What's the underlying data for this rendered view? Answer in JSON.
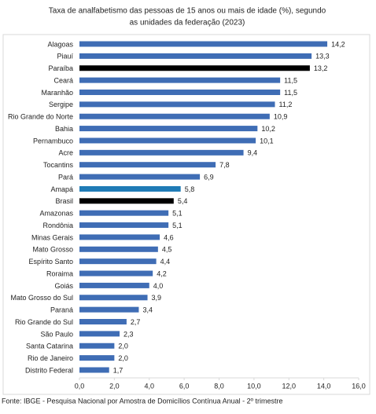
{
  "chart_data": {
    "type": "bar",
    "orientation": "horizontal",
    "title": [
      "Taxa de analfabetismo das pessoas de 15 anos ou mais de idade (%), segundo",
      "as unidades da federação (2023)"
    ],
    "categories": [
      "Alagoas",
      "Piauí",
      "Paraíba",
      "Ceará",
      "Maranhão",
      "Sergipe",
      "Rio Grande do Norte",
      "Bahia",
      "Pernambuco",
      "Acre",
      "Tocantins",
      "Pará",
      "Amapá",
      "Brasil",
      "Amazonas",
      "Rondônia",
      "Minas Gerais",
      "Mato Grosso",
      "Espírito Santo",
      "Roraima",
      "Goiás",
      "Mato Grosso do Sul",
      "Paraná",
      "Rio Grande do Sul",
      "São Paulo",
      "Santa Catarina",
      "Rio de Janeiro",
      "Distrito Federal"
    ],
    "values": [
      14.2,
      13.3,
      13.2,
      11.5,
      11.5,
      11.2,
      10.9,
      10.2,
      10.1,
      9.4,
      7.8,
      6.9,
      5.8,
      5.4,
      5.1,
      5.1,
      4.6,
      4.5,
      4.4,
      4.2,
      4.0,
      3.9,
      3.4,
      2.7,
      2.3,
      2.0,
      2.0,
      1.7
    ],
    "value_labels": [
      "14,2",
      "13,3",
      "13,2",
      "11,5",
      "11,5",
      "11,2",
      "10,9",
      "10,2",
      "10,1",
      "9,4",
      "7,8",
      "6,9",
      "5,8",
      "5,4",
      "5,1",
      "5,1",
      "4,6",
      "4,5",
      "4,4",
      "4,2",
      "4,0",
      "3,9",
      "3,4",
      "2,7",
      "2,3",
      "2,0",
      "2,0",
      "1,7"
    ],
    "colors": [
      "#3f6db5",
      "#3f6db5",
      "#000000",
      "#3f6db5",
      "#3f6db5",
      "#3f6db5",
      "#3f6db5",
      "#3f6db5",
      "#3f6db5",
      "#3f6db5",
      "#3f6db5",
      "#3f6db5",
      "#1f7bb6",
      "#000000",
      "#3f6db5",
      "#3f6db5",
      "#3f6db5",
      "#3f6db5",
      "#3f6db5",
      "#3f6db5",
      "#3f6db5",
      "#3f6db5",
      "#3f6db5",
      "#3f6db5",
      "#3f6db5",
      "#3f6db5",
      "#3f6db5",
      "#3f6db5"
    ],
    "xlim": [
      0,
      16
    ],
    "xticks": [
      {
        "value": 0,
        "label": "0,0"
      },
      {
        "value": 2,
        "label": "2,0"
      },
      {
        "value": 4,
        "label": "4,0"
      },
      {
        "value": 6,
        "label": "6,0"
      },
      {
        "value": 8,
        "label": "8,0"
      },
      {
        "value": 10,
        "label": "10,0"
      },
      {
        "value": 12,
        "label": "12,0"
      },
      {
        "value": 14,
        "label": "14,0"
      },
      {
        "value": 16,
        "label": "16,0"
      }
    ],
    "source": "Fonte: IBGE - Pesquisa Nacional por Amostra de Domicílios Contínua Anual - 2º trimestre"
  }
}
